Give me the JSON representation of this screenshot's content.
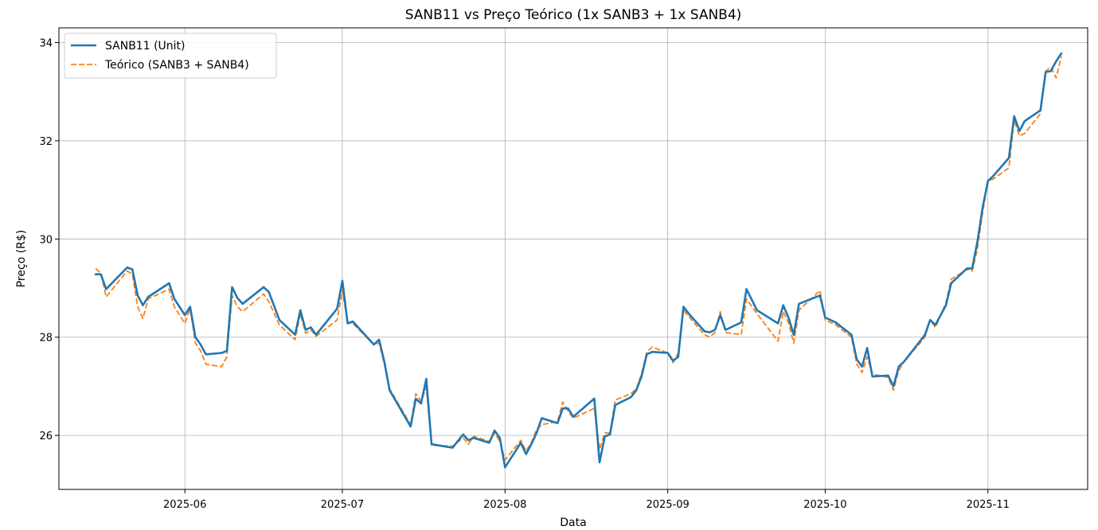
{
  "chart_data": {
    "type": "line",
    "title": "SANB11 vs Preço Teórico (1x SANB3 + 1x SANB4)",
    "xlabel": "Data",
    "ylabel": "Preço (R$)",
    "x_range": [
      "2025-05-08",
      "2025-11-20"
    ],
    "ylim": [
      24.9,
      34.3
    ],
    "grid": true,
    "legend_position": "top-left",
    "x_ticks": [
      {
        "date": "2025-06-01",
        "label": "2025-06"
      },
      {
        "date": "2025-07-01",
        "label": "2025-07"
      },
      {
        "date": "2025-08-01",
        "label": "2025-08"
      },
      {
        "date": "2025-09-01",
        "label": "2025-09"
      },
      {
        "date": "2025-10-01",
        "label": "2025-10"
      },
      {
        "date": "2025-11-01",
        "label": "2025-11"
      }
    ],
    "y_ticks": [
      26,
      28,
      30,
      32,
      34
    ],
    "series": [
      {
        "name": "SANB11 (Unit)",
        "color": "#1f77b4",
        "style": "solid",
        "points": [
          [
            "2025-05-15",
            29.28
          ],
          [
            "2025-05-16",
            29.28
          ],
          [
            "2025-05-17",
            28.98
          ],
          [
            "2025-05-21",
            29.42
          ],
          [
            "2025-05-22",
            29.38
          ],
          [
            "2025-05-23",
            28.85
          ],
          [
            "2025-05-24",
            28.65
          ],
          [
            "2025-05-25",
            28.82
          ],
          [
            "2025-05-29",
            29.1
          ],
          [
            "2025-05-30",
            28.78
          ],
          [
            "2025-06-01",
            28.45
          ],
          [
            "2025-06-02",
            28.62
          ],
          [
            "2025-06-03",
            28.0
          ],
          [
            "2025-06-04",
            27.85
          ],
          [
            "2025-06-05",
            27.65
          ],
          [
            "2025-06-08",
            27.68
          ],
          [
            "2025-06-09",
            27.72
          ],
          [
            "2025-06-10",
            29.02
          ],
          [
            "2025-06-11",
            28.8
          ],
          [
            "2025-06-12",
            28.68
          ],
          [
            "2025-06-16",
            29.02
          ],
          [
            "2025-06-17",
            28.92
          ],
          [
            "2025-06-19",
            28.35
          ],
          [
            "2025-06-22",
            28.05
          ],
          [
            "2025-06-23",
            28.55
          ],
          [
            "2025-06-24",
            28.15
          ],
          [
            "2025-06-25",
            28.2
          ],
          [
            "2025-06-26",
            28.05
          ],
          [
            "2025-06-30",
            28.58
          ],
          [
            "2025-07-01",
            29.15
          ],
          [
            "2025-07-02",
            28.28
          ],
          [
            "2025-07-03",
            28.32
          ],
          [
            "2025-07-07",
            27.85
          ],
          [
            "2025-07-08",
            27.95
          ],
          [
            "2025-07-09",
            27.5
          ],
          [
            "2025-07-10",
            26.92
          ],
          [
            "2025-07-14",
            26.18
          ],
          [
            "2025-07-15",
            26.75
          ],
          [
            "2025-07-16",
            26.65
          ],
          [
            "2025-07-17",
            27.15
          ],
          [
            "2025-07-18",
            25.82
          ],
          [
            "2025-07-22",
            25.75
          ],
          [
            "2025-07-24",
            26.02
          ],
          [
            "2025-07-25",
            25.9
          ],
          [
            "2025-07-26",
            25.95
          ],
          [
            "2025-07-29",
            25.85
          ],
          [
            "2025-07-30",
            26.1
          ],
          [
            "2025-07-31",
            25.95
          ],
          [
            "2025-08-01",
            25.35
          ],
          [
            "2025-08-04",
            25.85
          ],
          [
            "2025-08-05",
            25.62
          ],
          [
            "2025-08-06",
            25.82
          ],
          [
            "2025-08-07",
            26.05
          ],
          [
            "2025-08-08",
            26.35
          ],
          [
            "2025-08-11",
            26.25
          ],
          [
            "2025-08-12",
            26.55
          ],
          [
            "2025-08-13",
            26.55
          ],
          [
            "2025-08-14",
            26.38
          ],
          [
            "2025-08-18",
            26.75
          ],
          [
            "2025-08-19",
            25.45
          ],
          [
            "2025-08-20",
            25.98
          ],
          [
            "2025-08-21",
            26.02
          ],
          [
            "2025-08-22",
            26.62
          ],
          [
            "2025-08-25",
            26.78
          ],
          [
            "2025-08-26",
            26.92
          ],
          [
            "2025-08-27",
            27.2
          ],
          [
            "2025-08-28",
            27.65
          ],
          [
            "2025-08-29",
            27.7
          ],
          [
            "2025-09-01",
            27.68
          ],
          [
            "2025-09-02",
            27.52
          ],
          [
            "2025-09-03",
            27.6
          ],
          [
            "2025-09-04",
            28.62
          ],
          [
            "2025-09-05",
            28.48
          ],
          [
            "2025-09-08",
            28.12
          ],
          [
            "2025-09-09",
            28.1
          ],
          [
            "2025-09-10",
            28.15
          ],
          [
            "2025-09-11",
            28.45
          ],
          [
            "2025-09-12",
            28.15
          ],
          [
            "2025-09-15",
            28.3
          ],
          [
            "2025-09-16",
            28.98
          ],
          [
            "2025-09-18",
            28.55
          ],
          [
            "2025-09-22",
            28.28
          ],
          [
            "2025-09-23",
            28.65
          ],
          [
            "2025-09-24",
            28.4
          ],
          [
            "2025-09-25",
            28.05
          ],
          [
            "2025-09-26",
            28.68
          ],
          [
            "2025-09-30",
            28.85
          ],
          [
            "2025-10-01",
            28.4
          ],
          [
            "2025-10-03",
            28.3
          ],
          [
            "2025-10-06",
            28.05
          ],
          [
            "2025-10-07",
            27.55
          ],
          [
            "2025-10-08",
            27.4
          ],
          [
            "2025-10-09",
            27.78
          ],
          [
            "2025-10-10",
            27.2
          ],
          [
            "2025-10-13",
            27.22
          ],
          [
            "2025-10-14",
            27.0
          ],
          [
            "2025-10-15",
            27.4
          ],
          [
            "2025-10-16",
            27.5
          ],
          [
            "2025-10-20",
            28.05
          ],
          [
            "2025-10-21",
            28.35
          ],
          [
            "2025-10-22",
            28.25
          ],
          [
            "2025-10-24",
            28.65
          ],
          [
            "2025-10-25",
            29.1
          ],
          [
            "2025-10-28",
            29.4
          ],
          [
            "2025-10-29",
            29.4
          ],
          [
            "2025-10-30",
            29.95
          ],
          [
            "2025-10-31",
            30.65
          ],
          [
            "2025-11-01",
            31.18
          ],
          [
            "2025-11-02",
            31.28
          ],
          [
            "2025-11-05",
            31.65
          ],
          [
            "2025-11-06",
            32.5
          ],
          [
            "2025-11-07",
            32.2
          ],
          [
            "2025-11-08",
            32.4
          ],
          [
            "2025-11-11",
            32.62
          ],
          [
            "2025-11-12",
            33.4
          ],
          [
            "2025-11-13",
            33.42
          ],
          [
            "2025-11-14",
            33.62
          ],
          [
            "2025-11-15",
            33.78
          ]
        ]
      },
      {
        "name": "Teórico (SANB3 + SANB4)",
        "color": "#ff7f0e",
        "style": "dashed",
        "points": [
          [
            "2025-05-15",
            29.4
          ],
          [
            "2025-05-16",
            29.3
          ],
          [
            "2025-05-17",
            28.82
          ],
          [
            "2025-05-21",
            29.35
          ],
          [
            "2025-05-22",
            29.28
          ],
          [
            "2025-05-23",
            28.62
          ],
          [
            "2025-05-24",
            28.38
          ],
          [
            "2025-05-25",
            28.78
          ],
          [
            "2025-05-29",
            28.98
          ],
          [
            "2025-05-30",
            28.62
          ],
          [
            "2025-06-01",
            28.28
          ],
          [
            "2025-06-02",
            28.58
          ],
          [
            "2025-06-03",
            27.88
          ],
          [
            "2025-06-04",
            27.72
          ],
          [
            "2025-06-05",
            27.45
          ],
          [
            "2025-06-08",
            27.4
          ],
          [
            "2025-06-09",
            27.6
          ],
          [
            "2025-06-10",
            28.85
          ],
          [
            "2025-06-11",
            28.62
          ],
          [
            "2025-06-12",
            28.52
          ],
          [
            "2025-06-16",
            28.88
          ],
          [
            "2025-06-17",
            28.72
          ],
          [
            "2025-06-19",
            28.25
          ],
          [
            "2025-06-22",
            27.95
          ],
          [
            "2025-06-23",
            28.48
          ],
          [
            "2025-06-24",
            28.08
          ],
          [
            "2025-06-25",
            28.15
          ],
          [
            "2025-06-26",
            28.02
          ],
          [
            "2025-06-30",
            28.35
          ],
          [
            "2025-07-01",
            28.95
          ],
          [
            "2025-07-02",
            28.3
          ],
          [
            "2025-07-03",
            28.28
          ],
          [
            "2025-07-07",
            27.85
          ],
          [
            "2025-07-08",
            27.88
          ],
          [
            "2025-07-09",
            27.45
          ],
          [
            "2025-07-10",
            26.95
          ],
          [
            "2025-07-14",
            26.22
          ],
          [
            "2025-07-15",
            26.85
          ],
          [
            "2025-07-16",
            26.7
          ],
          [
            "2025-07-17",
            26.98
          ],
          [
            "2025-07-18",
            25.8
          ],
          [
            "2025-07-22",
            25.78
          ],
          [
            "2025-07-24",
            25.95
          ],
          [
            "2025-07-25",
            25.82
          ],
          [
            "2025-07-26",
            25.98
          ],
          [
            "2025-07-29",
            25.88
          ],
          [
            "2025-07-30",
            26.05
          ],
          [
            "2025-07-31",
            25.88
          ],
          [
            "2025-08-01",
            25.5
          ],
          [
            "2025-08-04",
            25.9
          ],
          [
            "2025-08-05",
            25.68
          ],
          [
            "2025-08-06",
            25.85
          ],
          [
            "2025-08-07",
            26.12
          ],
          [
            "2025-08-08",
            26.22
          ],
          [
            "2025-08-11",
            26.28
          ],
          [
            "2025-08-12",
            26.68
          ],
          [
            "2025-08-13",
            26.5
          ],
          [
            "2025-08-14",
            26.35
          ],
          [
            "2025-08-18",
            26.55
          ],
          [
            "2025-08-19",
            25.72
          ],
          [
            "2025-08-20",
            26.05
          ],
          [
            "2025-08-21",
            26.05
          ],
          [
            "2025-08-22",
            26.72
          ],
          [
            "2025-08-25",
            26.85
          ],
          [
            "2025-08-26",
            26.95
          ],
          [
            "2025-08-27",
            27.25
          ],
          [
            "2025-08-28",
            27.7
          ],
          [
            "2025-08-29",
            27.8
          ],
          [
            "2025-09-01",
            27.68
          ],
          [
            "2025-09-02",
            27.48
          ],
          [
            "2025-09-03",
            27.68
          ],
          [
            "2025-09-04",
            28.55
          ],
          [
            "2025-09-05",
            28.42
          ],
          [
            "2025-09-08",
            28.05
          ],
          [
            "2025-09-09",
            28.0
          ],
          [
            "2025-09-10",
            28.1
          ],
          [
            "2025-09-11",
            28.52
          ],
          [
            "2025-09-12",
            28.1
          ],
          [
            "2025-09-15",
            28.05
          ],
          [
            "2025-09-16",
            28.78
          ],
          [
            "2025-09-18",
            28.48
          ],
          [
            "2025-09-22",
            27.92
          ],
          [
            "2025-09-23",
            28.52
          ],
          [
            "2025-09-24",
            28.3
          ],
          [
            "2025-09-25",
            27.88
          ],
          [
            "2025-09-26",
            28.55
          ],
          [
            "2025-09-30",
            28.95
          ],
          [
            "2025-10-01",
            28.35
          ],
          [
            "2025-10-03",
            28.25
          ],
          [
            "2025-10-06",
            28.0
          ],
          [
            "2025-10-07",
            27.45
          ],
          [
            "2025-10-08",
            27.28
          ],
          [
            "2025-10-09",
            27.6
          ],
          [
            "2025-10-10",
            27.25
          ],
          [
            "2025-10-13",
            27.18
          ],
          [
            "2025-10-14",
            26.92
          ],
          [
            "2025-10-15",
            27.32
          ],
          [
            "2025-10-16",
            27.5
          ],
          [
            "2025-10-20",
            28.0
          ],
          [
            "2025-10-21",
            28.35
          ],
          [
            "2025-10-22",
            28.2
          ],
          [
            "2025-10-24",
            28.7
          ],
          [
            "2025-10-25",
            29.18
          ],
          [
            "2025-10-28",
            29.38
          ],
          [
            "2025-10-29",
            29.35
          ],
          [
            "2025-10-30",
            29.8
          ],
          [
            "2025-10-31",
            30.55
          ],
          [
            "2025-11-01",
            31.18
          ],
          [
            "2025-11-02",
            31.22
          ],
          [
            "2025-11-05",
            31.45
          ],
          [
            "2025-11-06",
            32.42
          ],
          [
            "2025-11-07",
            32.1
          ],
          [
            "2025-11-08",
            32.15
          ],
          [
            "2025-11-11",
            32.55
          ],
          [
            "2025-11-12",
            33.42
          ],
          [
            "2025-11-13",
            33.5
          ],
          [
            "2025-11-14",
            33.28
          ],
          [
            "2025-11-15",
            33.72
          ]
        ]
      }
    ]
  }
}
